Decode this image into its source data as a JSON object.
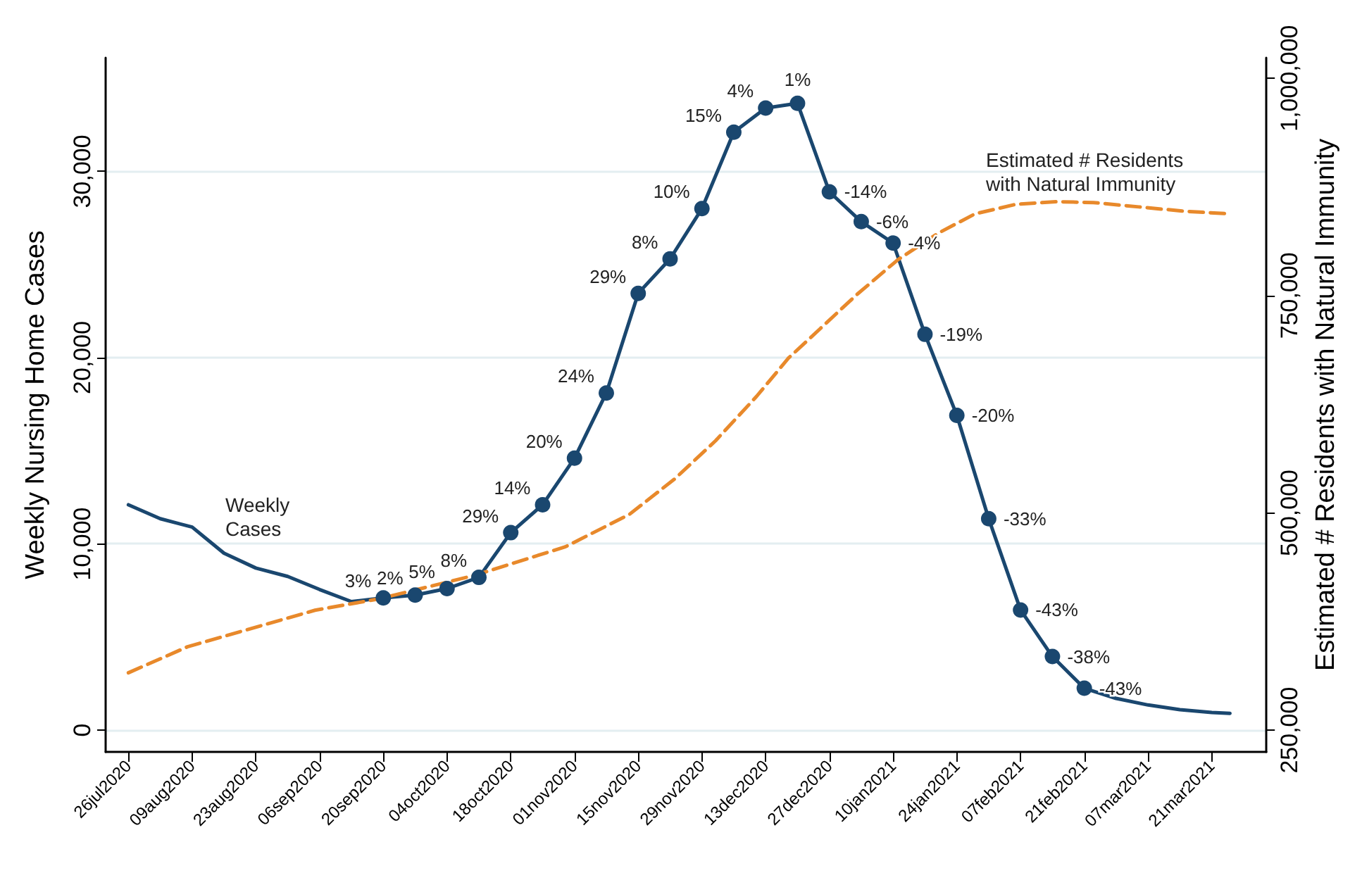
{
  "chart_data": {
    "type": "line",
    "ylabel": "Weekly Nursing Home Cases",
    "y2label": "Estimated # Residents with Natural Immunity",
    "xlim": [
      "2020-07-21",
      "2021-04-02"
    ],
    "xticks": [
      {
        "value": "2020-07-26",
        "label": "26jul2020"
      },
      {
        "value": "2020-08-09",
        "label": "09aug2020"
      },
      {
        "value": "2020-08-23",
        "label": "23aug2020"
      },
      {
        "value": "2020-09-06",
        "label": "06sep2020"
      },
      {
        "value": "2020-09-20",
        "label": "20sep2020"
      },
      {
        "value": "2020-10-04",
        "label": "04oct2020"
      },
      {
        "value": "2020-10-18",
        "label": "18oct2020"
      },
      {
        "value": "2020-11-01",
        "label": "01nov2020"
      },
      {
        "value": "2020-11-15",
        "label": "15nov2020"
      },
      {
        "value": "2020-11-29",
        "label": "29nov2020"
      },
      {
        "value": "2020-12-13",
        "label": "13dec2020"
      },
      {
        "value": "2020-12-27",
        "label": "27dec2020"
      },
      {
        "value": "2021-01-10",
        "label": "10jan2021"
      },
      {
        "value": "2021-01-24",
        "label": "24jan2021"
      },
      {
        "value": "2021-02-07",
        "label": "07feb2021"
      },
      {
        "value": "2021-02-21",
        "label": "21feb2021"
      },
      {
        "value": "2021-03-07",
        "label": "07mar2021"
      },
      {
        "value": "2021-03-21",
        "label": "21mar2021"
      }
    ],
    "ylim": [
      -1170,
      36100
    ],
    "yticks": [
      0,
      {
        "value": 10000,
        "label": "10,000"
      },
      {
        "value": 20000,
        "label": "20,000"
      },
      {
        "value": 30000,
        "label": "30,000"
      }
    ],
    "y2lim": [
      225000,
      1023600
    ],
    "y2ticks": [
      {
        "value": 250000,
        "label": "250,000"
      },
      {
        "value": 500000,
        "label": "500,000"
      },
      {
        "value": 750000,
        "label": "750,000"
      },
      {
        "value": 1000000,
        "label": "1,000,000"
      }
    ],
    "grid": "y",
    "annotations": [
      "Weekly\nCases",
      "Estimated # Residents\nwith Natural Immunity",
      {
        "text": "3%",
        "x": "2020-09-20",
        "y": 7100
      },
      {
        "text": "2%",
        "x": "2020-09-27",
        "y": 7250
      },
      {
        "text": "5%",
        "x": "2020-10-04",
        "y": 7600
      },
      {
        "text": "8%",
        "x": "2020-10-11",
        "y": 8200
      },
      {
        "text": "29%",
        "x": "2020-10-18",
        "y": 10600
      },
      {
        "text": "14%",
        "x": "2020-10-25",
        "y": 12100
      },
      {
        "text": "20%",
        "x": "2020-11-01",
        "y": 14600
      },
      {
        "text": "24%",
        "x": "2020-11-08",
        "y": 18100
      },
      {
        "text": "29%",
        "x": "2020-11-15",
        "y": 23450
      },
      {
        "text": "8%",
        "x": "2020-11-22",
        "y": 25300
      },
      {
        "text": "10%",
        "x": "2020-11-29",
        "y": 28000
      },
      {
        "text": "15%",
        "x": "2020-12-06",
        "y": 32100
      },
      {
        "text": "4%",
        "x": "2020-12-13",
        "y": 33400
      },
      {
        "text": "1%",
        "x": "2020-12-20",
        "y": 33650
      },
      {
        "text": "-14%",
        "x": "2020-12-27",
        "y": 28900
      },
      {
        "text": "-6%",
        "x": "2021-01-03",
        "y": 27300
      },
      {
        "text": "-4%",
        "x": "2021-01-10",
        "y": 26150
      },
      {
        "text": "-19%",
        "x": "2021-01-17",
        "y": 21250
      },
      {
        "text": "-20%",
        "x": "2021-01-24",
        "y": 16900
      },
      {
        "text": "-33%",
        "x": "2021-01-31",
        "y": 11350
      },
      {
        "text": "-43%",
        "x": "2021-02-07",
        "y": 6450
      },
      {
        "text": "-38%",
        "x": "2021-02-14",
        "y": 3950
      },
      {
        "text": "-43%",
        "x": "2021-02-21",
        "y": 2250
      }
    ],
    "series": [
      {
        "color": "#1a476f",
        "line_style": "solid",
        "marker": "circle",
        "x": [
          "2020-07-26",
          "2020-08-02",
          "2020-08-09",
          "2020-08-16",
          "2020-08-23",
          "2020-08-30",
          "2020-09-06",
          "2020-09-13",
          "2020-09-20",
          "2020-09-27",
          "2020-10-04",
          "2020-10-11",
          "2020-10-18",
          "2020-10-25",
          "2020-11-01",
          "2020-11-08",
          "2020-11-15",
          "2020-11-22",
          "2020-11-29",
          "2020-12-06",
          "2020-12-13",
          "2020-12-20",
          "2020-12-27",
          "2021-01-03",
          "2021-01-10",
          "2021-01-17",
          "2021-01-24",
          "2021-01-31",
          "2021-02-07",
          "2021-02-14",
          "2021-02-21",
          "2021-02-28",
          "2021-03-07",
          "2021-03-14",
          "2021-03-21",
          "2021-03-25"
        ],
        "values": [
          12100,
          11350,
          10900,
          9500,
          8700,
          8250,
          7550,
          6900,
          7100,
          7250,
          7600,
          8200,
          10600,
          12100,
          14600,
          18100,
          23450,
          25300,
          28000,
          32100,
          33400,
          33650,
          28900,
          27300,
          26150,
          21250,
          16900,
          11350,
          6450,
          3950,
          2250,
          1700,
          1350,
          1100,
          950,
          900
        ]
      },
      {
        "color": "#e8892b",
        "line_style": "dashed",
        "axis": "y2",
        "x": [
          "2020-07-26",
          "2020-08-08",
          "2020-09-05",
          "2020-09-19",
          "2020-10-10",
          "2020-10-30",
          "2020-11-13",
          "2020-11-23",
          "2020-12-02",
          "2020-12-11",
          "2020-12-18",
          "2020-12-25",
          "2021-01-02",
          "2021-01-11",
          "2021-01-20",
          "2021-01-28",
          "2021-02-06",
          "2021-02-15",
          "2021-02-23",
          "2021-03-05",
          "2021-03-15",
          "2021-03-25"
        ],
        "values": [
          316000,
          346000,
          388000,
          401000,
          428000,
          461000,
          498000,
          539000,
          583000,
          634000,
          678000,
          712000,
          751000,
          791000,
          822000,
          844000,
          855000,
          858000,
          857000,
          852000,
          847000,
          844000
        ]
      }
    ]
  }
}
